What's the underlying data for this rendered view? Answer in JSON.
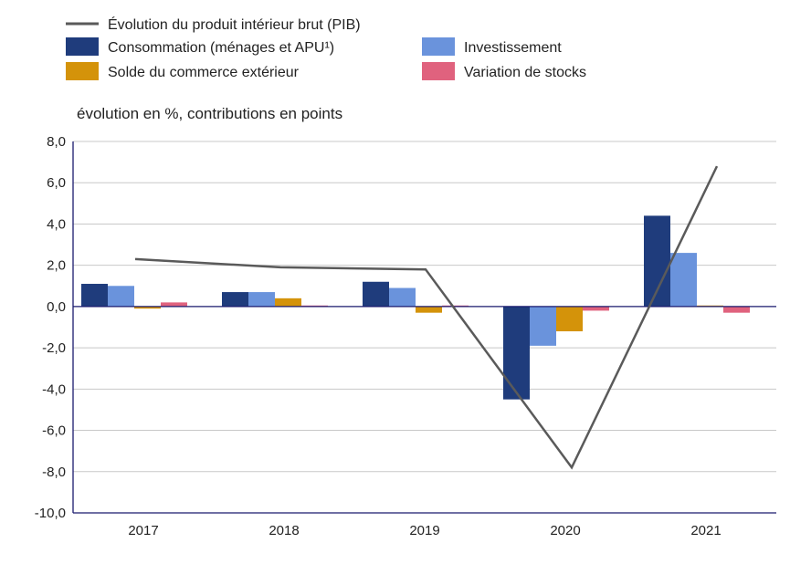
{
  "chart_data": {
    "type": "bar",
    "title": "",
    "unit_label": "évolution en %, contributions en points",
    "categories": [
      "2017",
      "2018",
      "2019",
      "2020",
      "2021"
    ],
    "ylim": [
      -10,
      8
    ],
    "yticks": [
      8,
      6,
      4,
      2,
      0,
      -2,
      -4,
      -6,
      -8,
      -10
    ],
    "ytick_labels": [
      "8,0",
      "6,0",
      "4,0",
      "2,0",
      "0,0",
      "-2,0",
      "-4,0",
      "-6,0",
      "-8,0",
      "-10,0"
    ],
    "grid": true,
    "legend_position": "top",
    "series": [
      {
        "name": "Consommation (ménages et APU¹)",
        "kind": "bar",
        "color": "#1f3c7c",
        "values": [
          1.1,
          0.7,
          1.2,
          -4.5,
          4.4
        ]
      },
      {
        "name": "Investissement",
        "kind": "bar",
        "color": "#6a93dc",
        "values": [
          1.0,
          0.7,
          0.9,
          -1.9,
          2.6
        ]
      },
      {
        "name": "Solde du commerce extérieur",
        "kind": "bar",
        "color": "#d4930a",
        "values": [
          -0.1,
          0.4,
          -0.3,
          -1.2,
          0.05
        ]
      },
      {
        "name": "Variation de stocks",
        "kind": "bar",
        "color": "#e0627e",
        "values": [
          0.2,
          0.05,
          0.05,
          -0.2,
          -0.3
        ]
      },
      {
        "name": "Évolution du produit intérieur brut (PIB)",
        "kind": "line",
        "color": "#5a5a5a",
        "values": [
          2.3,
          1.9,
          1.8,
          -7.8,
          6.8
        ]
      }
    ]
  }
}
